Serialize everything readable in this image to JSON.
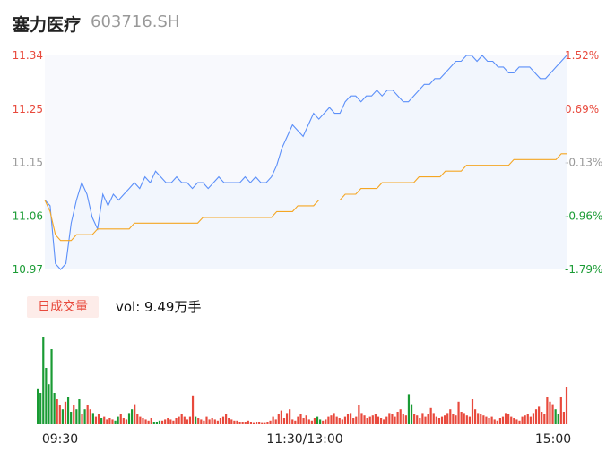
{
  "header": {
    "name": "塞力医疗",
    "code": "603716.SH"
  },
  "volume_panel": {
    "tab_label": "日成交量",
    "vol_text": "vol: 9.49万手"
  },
  "colors": {
    "up": "#e8493c",
    "down": "#1a9b34",
    "neutral": "#999999",
    "price_line": "#5b8ff9",
    "avg_line": "#f5a623"
  },
  "chart_data": [
    {
      "type": "line",
      "title": "",
      "x_ticks": [
        "09:30",
        "11:30/13:00",
        "15:00"
      ],
      "y_ticks_left": [
        "11.34",
        "11.25",
        "11.15",
        "11.06",
        "10.97"
      ],
      "y_ticks_right": [
        "1.52%",
        "0.69%",
        "-0.13%",
        "-0.96%",
        "-1.79%"
      ],
      "ylim": [
        10.97,
        11.34
      ],
      "series": [
        {
          "values": [
            11.09,
            11.08,
            10.98,
            10.97,
            10.98,
            11.05,
            11.09,
            11.12,
            11.1,
            11.06,
            11.04,
            11.1,
            11.08,
            11.1,
            11.09,
            11.1,
            11.11,
            11.12,
            11.11,
            11.13,
            11.12,
            11.14,
            11.13,
            11.12,
            11.12,
            11.13,
            11.12,
            11.12,
            11.11,
            11.12,
            11.12,
            11.11,
            11.12,
            11.13,
            11.12,
            11.12,
            11.12,
            11.12,
            11.13,
            11.12,
            11.13,
            11.12,
            11.12,
            11.13,
            11.15,
            11.18,
            11.2,
            11.22,
            11.21,
            11.2,
            11.22,
            11.24,
            11.23,
            11.24,
            11.25,
            11.24,
            11.24,
            11.26,
            11.27,
            11.27,
            11.26,
            11.27,
            11.27,
            11.28,
            11.27,
            11.28,
            11.28,
            11.27,
            11.26,
            11.26,
            11.27,
            11.28,
            11.29,
            11.29,
            11.3,
            11.3,
            11.31,
            11.32,
            11.33,
            11.33,
            11.34,
            11.34,
            11.33,
            11.34,
            11.33,
            11.33,
            11.32,
            11.32,
            11.31,
            11.31,
            11.32,
            11.32,
            11.32,
            11.31,
            11.3,
            11.3,
            11.31,
            11.32,
            11.33,
            11.34
          ]
        },
        {
          "values": [
            11.09,
            11.07,
            11.03,
            11.02,
            11.02,
            11.02,
            11.03,
            11.03,
            11.03,
            11.03,
            11.04,
            11.04,
            11.04,
            11.04,
            11.04,
            11.04,
            11.04,
            11.05,
            11.05,
            11.05,
            11.05,
            11.05,
            11.05,
            11.05,
            11.05,
            11.05,
            11.05,
            11.05,
            11.05,
            11.05,
            11.06,
            11.06,
            11.06,
            11.06,
            11.06,
            11.06,
            11.06,
            11.06,
            11.06,
            11.06,
            11.06,
            11.06,
            11.06,
            11.06,
            11.07,
            11.07,
            11.07,
            11.07,
            11.08,
            11.08,
            11.08,
            11.08,
            11.09,
            11.09,
            11.09,
            11.09,
            11.09,
            11.1,
            11.1,
            11.1,
            11.11,
            11.11,
            11.11,
            11.11,
            11.12,
            11.12,
            11.12,
            11.12,
            11.12,
            11.12,
            11.12,
            11.13,
            11.13,
            11.13,
            11.13,
            11.13,
            11.14,
            11.14,
            11.14,
            11.14,
            11.15,
            11.15,
            11.15,
            11.15,
            11.15,
            11.15,
            11.15,
            11.15,
            11.15,
            11.16,
            11.16,
            11.16,
            11.16,
            11.16,
            11.16,
            11.16,
            11.16,
            11.16,
            11.17,
            11.17
          ]
        }
      ]
    },
    {
      "type": "bar",
      "title": "",
      "categories_count": 192,
      "values": [
        2.8,
        2.5,
        7.0,
        4.5,
        3.2,
        6.0,
        2.5,
        2.0,
        1.5,
        1.2,
        1.8,
        2.2,
        1.0,
        1.5,
        1.2,
        2.0,
        0.8,
        1.2,
        1.5,
        1.2,
        0.9,
        0.6,
        0.8,
        0.5,
        0.6,
        0.4,
        0.5,
        0.4,
        0.3,
        0.6,
        0.8,
        0.5,
        0.4,
        0.9,
        1.2,
        1.6,
        0.8,
        0.6,
        0.5,
        0.4,
        0.3,
        0.5,
        0.2,
        0.2,
        0.3,
        0.3,
        0.4,
        0.5,
        0.4,
        0.3,
        0.5,
        0.6,
        0.8,
        0.6,
        0.4,
        0.6,
        2.3,
        0.6,
        0.5,
        0.4,
        0.3,
        0.6,
        0.4,
        0.5,
        0.4,
        0.3,
        0.5,
        0.6,
        0.8,
        0.5,
        0.4,
        0.3,
        0.3,
        0.2,
        0.2,
        0.2,
        0.3,
        0.2,
        0.1,
        0.2,
        0.2,
        0.1,
        0.1,
        0.2,
        0.3,
        0.6,
        0.4,
        0.8,
        1.1,
        0.5,
        0.9,
        1.2,
        0.4,
        0.3,
        0.6,
        0.8,
        0.5,
        0.7,
        0.4,
        0.3,
        0.5,
        0.6,
        0.4,
        0.3,
        0.4,
        0.6,
        0.7,
        0.9,
        0.6,
        0.5,
        0.4,
        0.6,
        0.8,
        0.9,
        0.5,
        0.6,
        1.5,
        0.9,
        0.7,
        0.5,
        0.6,
        0.7,
        0.8,
        0.6,
        0.5,
        0.4,
        0.6,
        0.9,
        0.8,
        0.6,
        1.0,
        1.2,
        0.8,
        0.7,
        2.4,
        1.6,
        0.8,
        0.7,
        0.5,
        0.9,
        0.6,
        0.8,
        1.3,
        0.9,
        0.6,
        0.5,
        0.6,
        0.7,
        0.9,
        1.2,
        0.8,
        0.7,
        1.8,
        1.0,
        0.9,
        0.7,
        0.6,
        2.0,
        1.2,
        0.9,
        0.8,
        0.7,
        0.6,
        0.5,
        0.6,
        0.4,
        0.3,
        0.5,
        0.6,
        0.9,
        0.8,
        0.6,
        0.5,
        0.4,
        0.3,
        0.6,
        0.7,
        0.8,
        0.6,
        0.9,
        1.2,
        1.4,
        1.0,
        0.8,
        2.2,
        1.8,
        1.6,
        1.2,
        0.8,
        2.2,
        1.0,
        3.0
      ],
      "directions": "ddddddduududdudduduuduuduuuudduuudduuuuuuuddduuuuuuuuuuuuduuuuuuuuuuuuuuuuuuuuuuuuuuuuuuuuuuuuuuuuuuudduuuuuuuuuuuuuuuuuuuuuuuuuuuuuuudduuuuuuuuuuuuuuuuuuuuuuuuuuuuuuuuuuuuuuuuuuuuuuuuuuudduu"
    }
  ]
}
